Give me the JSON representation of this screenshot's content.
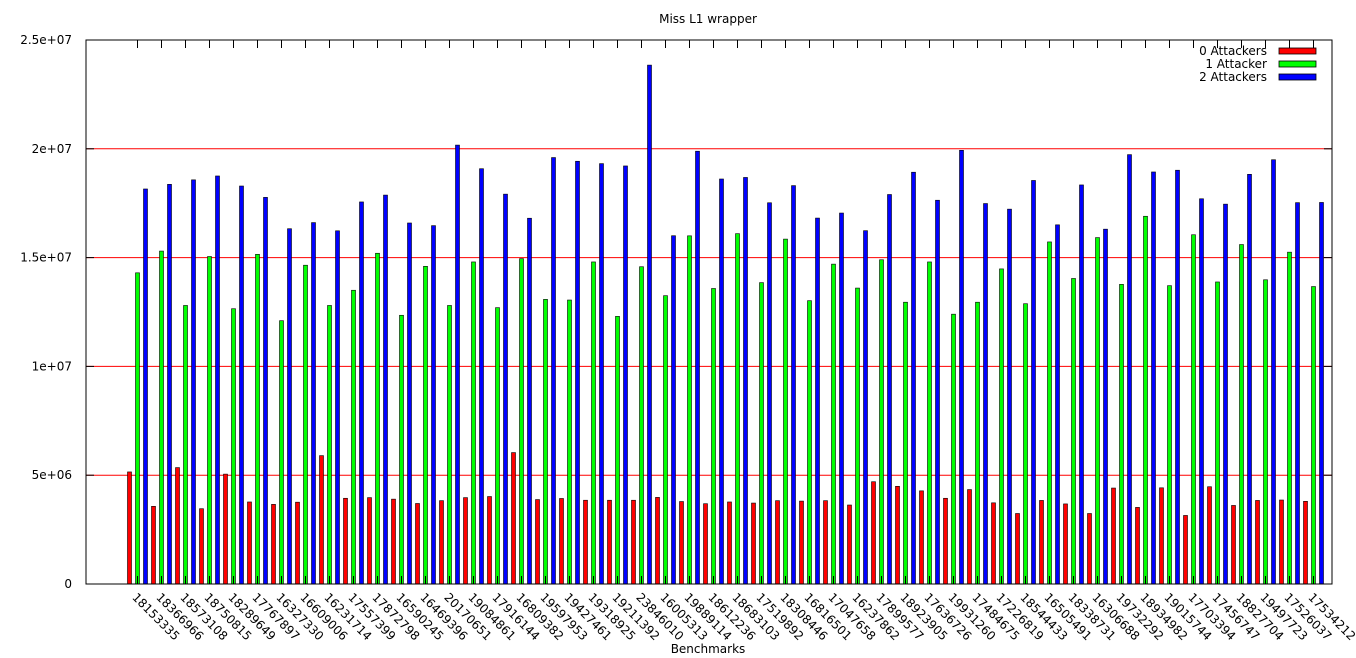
{
  "chart_data": {
    "type": "bar",
    "title": "Miss L1 wrapper",
    "xlabel": "Benchmarks",
    "ylabel": "",
    "ylim": [
      0,
      25000000
    ],
    "yticks": [
      {
        "value": 0,
        "label": "0"
      },
      {
        "value": 5000000,
        "label": "5e+06"
      },
      {
        "value": 10000000,
        "label": "1e+07"
      },
      {
        "value": 15000000,
        "label": "1.5e+07"
      },
      {
        "value": 20000000,
        "label": "2e+07"
      },
      {
        "value": 25000000,
        "label": "2.5e+07"
      }
    ],
    "grid": "horizontal",
    "legend_position": "top-right",
    "categories": [
      "18153335",
      "18366966",
      "18573108",
      "18750815",
      "18289649",
      "17767897",
      "16327330",
      "16609006",
      "16231714",
      "17557399",
      "17872798",
      "16590245",
      "16469396",
      "20170651",
      "19084861",
      "17916144",
      "16809382",
      "19597953",
      "19427461",
      "19318925",
      "19211392",
      "23846010",
      "16005313",
      "19889114",
      "18612236",
      "18683103",
      "17519892",
      "18308446",
      "16816501",
      "17047658",
      "16237862",
      "17899577",
      "18923905",
      "17636726",
      "19931260",
      "17484675",
      "17226819",
      "18544433",
      "16505491",
      "18338731",
      "16306688",
      "19732292",
      "18934982",
      "19015744",
      "17703394",
      "17456747",
      "18827704",
      "19497723",
      "17526037",
      "17534212"
    ],
    "series": [
      {
        "name": "0 Attackers",
        "color": "#ff0000",
        "values": [
          5150000,
          3570000,
          5350000,
          3460000,
          5050000,
          3770000,
          3660000,
          3760000,
          5900000,
          3940000,
          3970000,
          3900000,
          3700000,
          3830000,
          3970000,
          4020000,
          6040000,
          3880000,
          3930000,
          3850000,
          3850000,
          3850000,
          3980000,
          3790000,
          3690000,
          3770000,
          3720000,
          3830000,
          3810000,
          3830000,
          3630000,
          4700000,
          4490000,
          4280000,
          3940000,
          4340000,
          3730000,
          3240000,
          3840000,
          3680000,
          3240000,
          4410000,
          3520000,
          4420000,
          3150000,
          4470000,
          3610000,
          3840000,
          3860000,
          3800000
        ]
      },
      {
        "name": "1 Attacker",
        "color": "#00ff00",
        "values": [
          14300000,
          15300000,
          12800000,
          15050000,
          12650000,
          15150000,
          12100000,
          14650000,
          12800000,
          13500000,
          15200000,
          12350000,
          14600000,
          12800000,
          14800000,
          12700000,
          14950000,
          13080000,
          13050000,
          14800000,
          12300000,
          14580000,
          13250000,
          16000000,
          13580000,
          16100000,
          13850000,
          15850000,
          13020000,
          14700000,
          13600000,
          14900000,
          12950000,
          14800000,
          12400000,
          12950000,
          14480000,
          12880000,
          15720000,
          14040000,
          15920000,
          13770000,
          16900000,
          13710000,
          16050000,
          13880000,
          15600000,
          13980000,
          15250000,
          13670000
        ]
      },
      {
        "name": "2 Attackers",
        "color": "#0000ff",
        "values": [
          18153335,
          18366966,
          18573108,
          18750815,
          18289649,
          17767897,
          16327330,
          16609006,
          16231714,
          17557399,
          17872798,
          16590245,
          16469396,
          20170651,
          19084861,
          17916144,
          16809382,
          19597953,
          19427461,
          19318925,
          19211392,
          23846010,
          16005313,
          19889114,
          18612236,
          18683103,
          17519892,
          18308446,
          16816501,
          17047658,
          16237862,
          17899577,
          18923905,
          17636726,
          19931260,
          17484675,
          17226819,
          18544433,
          16505491,
          18338731,
          16306688,
          19732292,
          18934982,
          19015744,
          17703394,
          17456747,
          18827704,
          19497723,
          17526037,
          17534212
        ]
      }
    ]
  }
}
